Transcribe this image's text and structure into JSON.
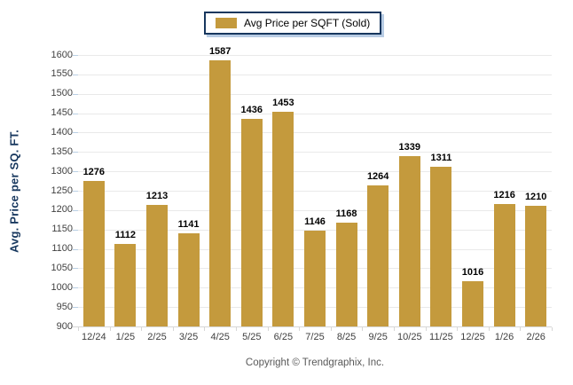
{
  "chart_data": {
    "type": "bar",
    "title": "",
    "legend": "Avg Price per SQFT (Sold)",
    "legend_position": "top-center",
    "categories": [
      "12/24",
      "1/25",
      "2/25",
      "3/25",
      "4/25",
      "5/25",
      "6/25",
      "7/25",
      "8/25",
      "9/25",
      "10/25",
      "11/25",
      "12/25",
      "1/26",
      "2/26"
    ],
    "values": [
      1276,
      1112,
      1213,
      1141,
      1587,
      1436,
      1453,
      1146,
      1168,
      1264,
      1339,
      1311,
      1016,
      1216,
      1210
    ],
    "xlabel": "",
    "ylabel": "Avg. Price per SQ. FT.",
    "ylim": [
      900,
      1600
    ],
    "ytick_step": 50,
    "grid": true,
    "bar_color": "#C49A3D"
  },
  "colors": {
    "bar": "#C49A3D",
    "legend_border": "#17375E",
    "legend_shadow": "#B8CCE4",
    "axis_title": "#17375E",
    "tick_label": "#404040",
    "gridline": "#E9E9E9",
    "copyright_text": "#595959"
  },
  "footer": {
    "copyright": "Copyright © Trendgraphix, Inc."
  }
}
